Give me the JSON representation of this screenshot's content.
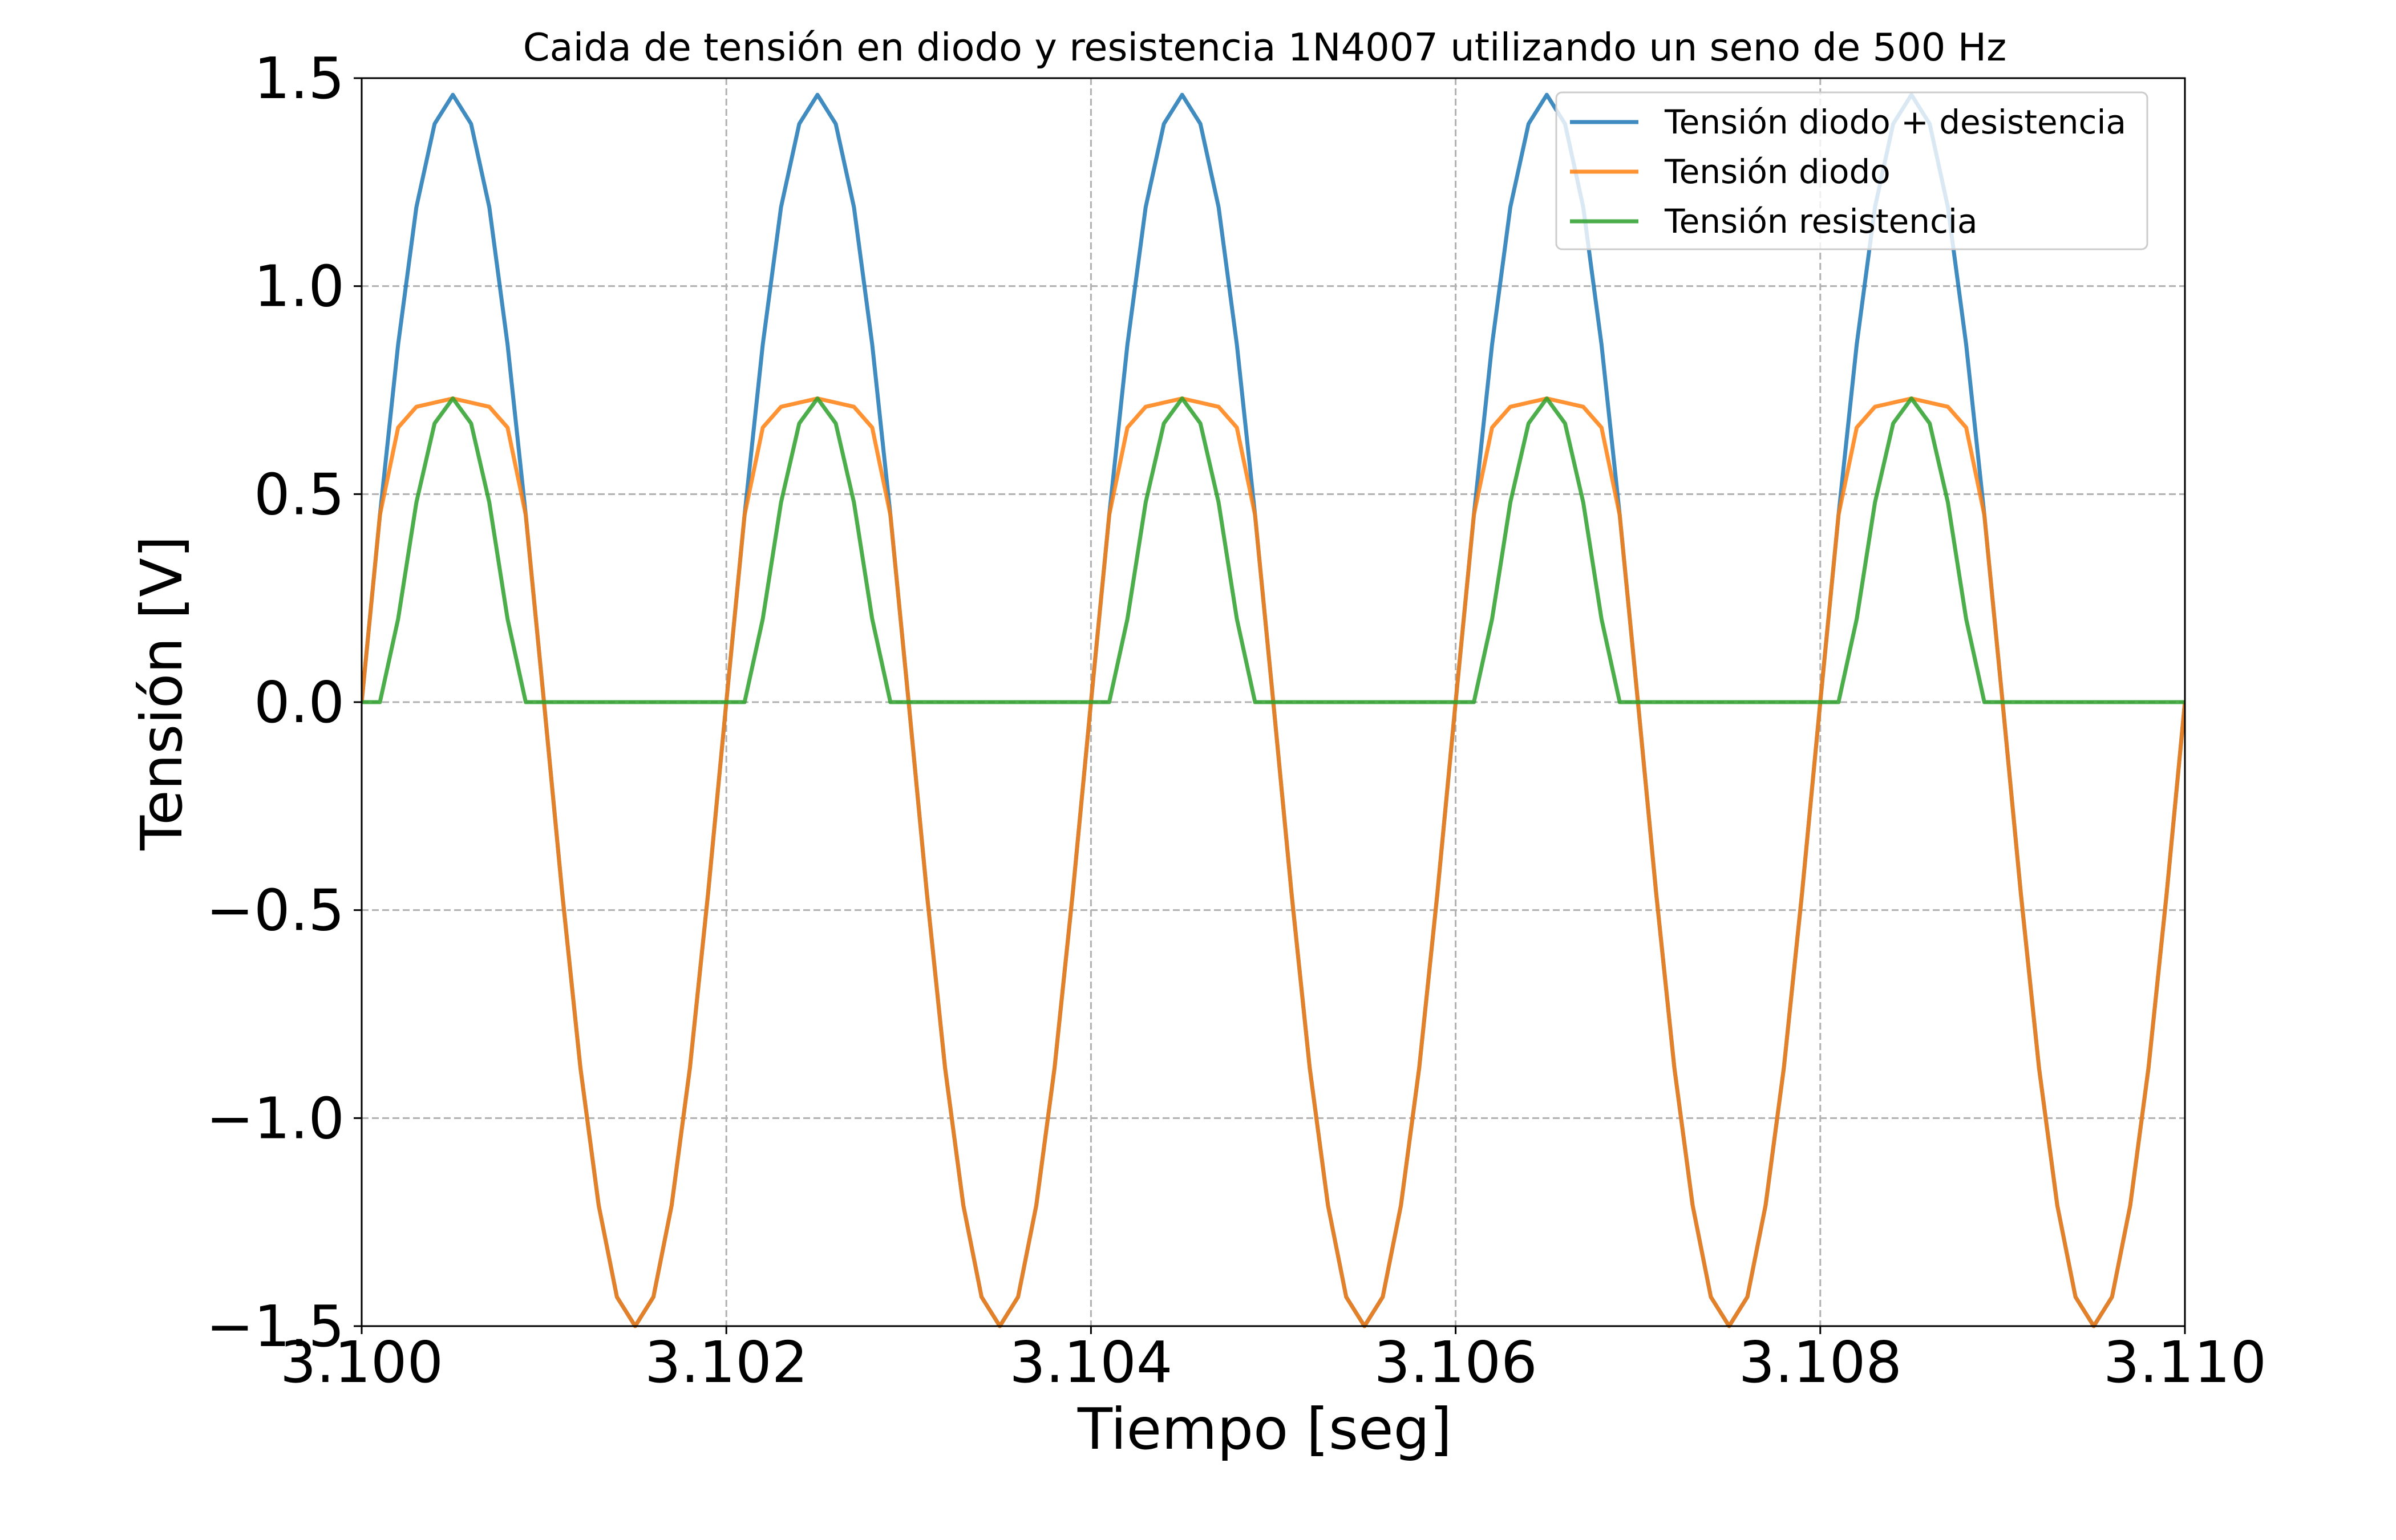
{
  "chart_data": {
    "type": "line",
    "title": "Caida de tensión en diodo y resistencia 1N4007 utilizando un seno de 500 Hz",
    "xlabel": "Tiempo [seg]",
    "ylabel": "Tensión [V]",
    "xlim": [
      3.1,
      3.11
    ],
    "ylim": [
      -1.5,
      1.5
    ],
    "xticks": [
      3.1,
      3.102,
      3.104,
      3.106,
      3.108,
      3.11
    ],
    "xtick_labels": [
      "3.100",
      "3.102",
      "3.104",
      "3.106",
      "3.108",
      "3.110"
    ],
    "yticks": [
      -1.5,
      -1.0,
      -0.5,
      0.0,
      0.5,
      1.0,
      1.5
    ],
    "ytick_labels": [
      "−1.5",
      "−1.0",
      "−0.5",
      "0.0",
      "0.5",
      "1.0",
      "1.5"
    ],
    "grid": true,
    "legend_position": "top-right",
    "series": [
      {
        "name": "Tensión diodo + desistencia",
        "color": "#1f77b4",
        "x": [
          3.1,
          3.1001,
          3.1002,
          3.1003,
          3.1004,
          3.1005,
          3.1006,
          3.1007,
          3.1008,
          3.1009,
          3.101,
          3.1011,
          3.1012,
          3.1013,
          3.1014,
          3.1015,
          3.1016,
          3.1017,
          3.1018,
          3.1019,
          3.102,
          3.1021,
          3.1022,
          3.1023,
          3.1024,
          3.1025,
          3.1026,
          3.1027,
          3.1028,
          3.1029,
          3.103,
          3.1031,
          3.1032,
          3.1033,
          3.1034,
          3.1035,
          3.1036,
          3.1037,
          3.1038,
          3.1039,
          3.104,
          3.1041,
          3.1042,
          3.1043,
          3.1044,
          3.1045,
          3.1046,
          3.1047,
          3.1048,
          3.1049,
          3.105,
          3.1051,
          3.1052,
          3.1053,
          3.1054,
          3.1055,
          3.1056,
          3.1057,
          3.1058,
          3.1059,
          3.106,
          3.1061,
          3.1062,
          3.1063,
          3.1064,
          3.1065,
          3.1066,
          3.1067,
          3.1068,
          3.1069,
          3.107,
          3.1071,
          3.1072,
          3.1073,
          3.1074,
          3.1075,
          3.1076,
          3.1077,
          3.1078,
          3.1079,
          3.108,
          3.1081,
          3.1082,
          3.1083,
          3.1084,
          3.1085,
          3.1086,
          3.1087,
          3.1088,
          3.1089,
          3.109,
          3.1091,
          3.1092,
          3.1093,
          3.1094,
          3.1095,
          3.1096,
          3.1097,
          3.1098,
          3.1099,
          3.11
        ],
        "y": [
          0.0,
          0.45,
          0.86,
          1.19,
          1.39,
          1.46,
          1.39,
          1.19,
          0.86,
          0.45,
          0.0,
          -0.46,
          -0.88,
          -1.21,
          -1.43,
          -1.5,
          -1.43,
          -1.21,
          -0.88,
          -0.46,
          0.0,
          0.45,
          0.86,
          1.19,
          1.39,
          1.46,
          1.39,
          1.19,
          0.86,
          0.45,
          0.0,
          -0.46,
          -0.88,
          -1.21,
          -1.43,
          -1.5,
          -1.43,
          -1.21,
          -0.88,
          -0.46,
          0.0,
          0.45,
          0.86,
          1.19,
          1.39,
          1.46,
          1.39,
          1.19,
          0.86,
          0.45,
          0.0,
          -0.46,
          -0.88,
          -1.21,
          -1.43,
          -1.5,
          -1.43,
          -1.21,
          -0.88,
          -0.46,
          0.0,
          0.45,
          0.86,
          1.19,
          1.39,
          1.46,
          1.39,
          1.19,
          0.86,
          0.45,
          0.0,
          -0.46,
          -0.88,
          -1.21,
          -1.43,
          -1.5,
          -1.43,
          -1.21,
          -0.88,
          -0.46,
          0.0,
          0.45,
          0.86,
          1.19,
          1.39,
          1.46,
          1.39,
          1.19,
          0.86,
          0.45,
          0.0,
          -0.46,
          -0.88,
          -1.21,
          -1.43,
          -1.5,
          -1.43,
          -1.21,
          -0.88,
          -0.46,
          0.0
        ]
      },
      {
        "name": "Tensión diodo",
        "color": "#ff7f0e",
        "x": [
          3.1,
          3.1001,
          3.1002,
          3.1003,
          3.1004,
          3.1005,
          3.1006,
          3.1007,
          3.1008,
          3.1009,
          3.101,
          3.1011,
          3.1012,
          3.1013,
          3.1014,
          3.1015,
          3.1016,
          3.1017,
          3.1018,
          3.1019,
          3.102,
          3.1021,
          3.1022,
          3.1023,
          3.1024,
          3.1025,
          3.1026,
          3.1027,
          3.1028,
          3.1029,
          3.103,
          3.1031,
          3.1032,
          3.1033,
          3.1034,
          3.1035,
          3.1036,
          3.1037,
          3.1038,
          3.1039,
          3.104,
          3.1041,
          3.1042,
          3.1043,
          3.1044,
          3.1045,
          3.1046,
          3.1047,
          3.1048,
          3.1049,
          3.105,
          3.1051,
          3.1052,
          3.1053,
          3.1054,
          3.1055,
          3.1056,
          3.1057,
          3.1058,
          3.1059,
          3.106,
          3.1061,
          3.1062,
          3.1063,
          3.1064,
          3.1065,
          3.1066,
          3.1067,
          3.1068,
          3.1069,
          3.107,
          3.1071,
          3.1072,
          3.1073,
          3.1074,
          3.1075,
          3.1076,
          3.1077,
          3.1078,
          3.1079,
          3.108,
          3.1081,
          3.1082,
          3.1083,
          3.1084,
          3.1085,
          3.1086,
          3.1087,
          3.1088,
          3.1089,
          3.109,
          3.1091,
          3.1092,
          3.1093,
          3.1094,
          3.1095,
          3.1096,
          3.1097,
          3.1098,
          3.1099,
          3.11
        ],
        "y": [
          0.0,
          0.45,
          0.66,
          0.71,
          0.72,
          0.73,
          0.72,
          0.71,
          0.66,
          0.45,
          0.0,
          -0.46,
          -0.88,
          -1.21,
          -1.43,
          -1.5,
          -1.43,
          -1.21,
          -0.88,
          -0.46,
          0.0,
          0.45,
          0.66,
          0.71,
          0.72,
          0.73,
          0.72,
          0.71,
          0.66,
          0.45,
          0.0,
          -0.46,
          -0.88,
          -1.21,
          -1.43,
          -1.5,
          -1.43,
          -1.21,
          -0.88,
          -0.46,
          0.0,
          0.45,
          0.66,
          0.71,
          0.72,
          0.73,
          0.72,
          0.71,
          0.66,
          0.45,
          0.0,
          -0.46,
          -0.88,
          -1.21,
          -1.43,
          -1.5,
          -1.43,
          -1.21,
          -0.88,
          -0.46,
          0.0,
          0.45,
          0.66,
          0.71,
          0.72,
          0.73,
          0.72,
          0.71,
          0.66,
          0.45,
          0.0,
          -0.46,
          -0.88,
          -1.21,
          -1.43,
          -1.5,
          -1.43,
          -1.21,
          -0.88,
          -0.46,
          0.0,
          0.45,
          0.66,
          0.71,
          0.72,
          0.73,
          0.72,
          0.71,
          0.66,
          0.45,
          0.0,
          -0.46,
          -0.88,
          -1.21,
          -1.43,
          -1.5,
          -1.43,
          -1.21,
          -0.88,
          -0.46,
          0.0
        ]
      },
      {
        "name": "Tensión resistencia",
        "color": "#2ca02c",
        "x": [
          3.1,
          3.1001,
          3.1002,
          3.1003,
          3.1004,
          3.1005,
          3.1006,
          3.1007,
          3.1008,
          3.1009,
          3.101,
          3.1011,
          3.1012,
          3.1013,
          3.1014,
          3.1015,
          3.1016,
          3.1017,
          3.1018,
          3.1019,
          3.102,
          3.1021,
          3.1022,
          3.1023,
          3.1024,
          3.1025,
          3.1026,
          3.1027,
          3.1028,
          3.1029,
          3.103,
          3.1031,
          3.1032,
          3.1033,
          3.1034,
          3.1035,
          3.1036,
          3.1037,
          3.1038,
          3.1039,
          3.104,
          3.1041,
          3.1042,
          3.1043,
          3.1044,
          3.1045,
          3.1046,
          3.1047,
          3.1048,
          3.1049,
          3.105,
          3.1051,
          3.1052,
          3.1053,
          3.1054,
          3.1055,
          3.1056,
          3.1057,
          3.1058,
          3.1059,
          3.106,
          3.1061,
          3.1062,
          3.1063,
          3.1064,
          3.1065,
          3.1066,
          3.1067,
          3.1068,
          3.1069,
          3.107,
          3.1071,
          3.1072,
          3.1073,
          3.1074,
          3.1075,
          3.1076,
          3.1077,
          3.1078,
          3.1079,
          3.108,
          3.1081,
          3.1082,
          3.1083,
          3.1084,
          3.1085,
          3.1086,
          3.1087,
          3.1088,
          3.1089,
          3.109,
          3.1091,
          3.1092,
          3.1093,
          3.1094,
          3.1095,
          3.1096,
          3.1097,
          3.1098,
          3.1099,
          3.11
        ],
        "y": [
          0.0,
          0.0,
          0.2,
          0.48,
          0.67,
          0.73,
          0.67,
          0.48,
          0.2,
          0.0,
          0.0,
          0.0,
          0.0,
          0.0,
          0.0,
          0.0,
          0.0,
          0.0,
          0.0,
          0.0,
          0.0,
          0.0,
          0.2,
          0.48,
          0.67,
          0.73,
          0.67,
          0.48,
          0.2,
          0.0,
          0.0,
          0.0,
          0.0,
          0.0,
          0.0,
          0.0,
          0.0,
          0.0,
          0.0,
          0.0,
          0.0,
          0.0,
          0.2,
          0.48,
          0.67,
          0.73,
          0.67,
          0.48,
          0.2,
          0.0,
          0.0,
          0.0,
          0.0,
          0.0,
          0.0,
          0.0,
          0.0,
          0.0,
          0.0,
          0.0,
          0.0,
          0.0,
          0.2,
          0.48,
          0.67,
          0.73,
          0.67,
          0.48,
          0.2,
          0.0,
          0.0,
          0.0,
          0.0,
          0.0,
          0.0,
          0.0,
          0.0,
          0.0,
          0.0,
          0.0,
          0.0,
          0.0,
          0.2,
          0.48,
          0.67,
          0.73,
          0.67,
          0.48,
          0.2,
          0.0,
          0.0,
          0.0,
          0.0,
          0.0,
          0.0,
          0.0,
          0.0,
          0.0,
          0.0,
          0.0,
          0.0
        ]
      }
    ]
  }
}
